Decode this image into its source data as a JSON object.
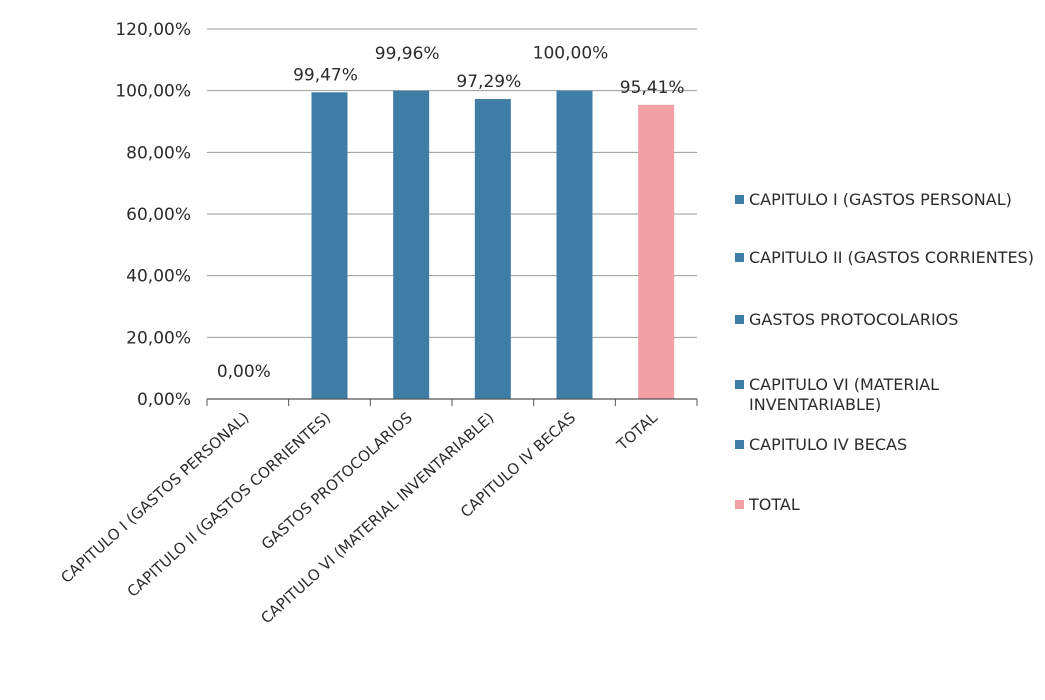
{
  "chart_data": {
    "type": "bar",
    "categories": [
      "CAPITULO I (GASTOS PERSONAL)",
      "CAPITULO II (GASTOS CORRIENTES)",
      "GASTOS PROTOCOLARIOS",
      "CAPITULO VI (MATERIAL INVENTARIABLE)",
      "CAPITULO IV BECAS",
      "TOTAL"
    ],
    "values": [
      0,
      99.47,
      99.96,
      97.29,
      100,
      95.41
    ],
    "data_labels": [
      "0,00%",
      "99,47%",
      "99,96%",
      "97,29%",
      "100,00%",
      "95,41%"
    ],
    "colors": [
      "#3e7ea6",
      "#3e7ea6",
      "#3e7ea6",
      "#3e7ea6",
      "#3e7ea6",
      "#f2a0a3"
    ],
    "ylim": [
      0,
      120
    ],
    "yticks": [
      0,
      20,
      40,
      60,
      80,
      100,
      120
    ],
    "ytick_labels": [
      "0,00%",
      "20,00%",
      "40,00%",
      "60,00%",
      "80,00%",
      "100,00%",
      "120,00%"
    ],
    "grid": true,
    "legend_position": "right",
    "legend": [
      {
        "label": "CAPITULO I (GASTOS PERSONAL)",
        "color": "#3e7ea6"
      },
      {
        "label": "CAPITULO II (GASTOS CORRIENTES)",
        "color": "#3e7ea6"
      },
      {
        "label": "GASTOS PROTOCOLARIOS",
        "color": "#3e7ea6"
      },
      {
        "label": "CAPITULO VI (MATERIAL INVENTARIABLE)",
        "color": "#3e7ea6"
      },
      {
        "label": "CAPITULO IV BECAS",
        "color": "#3e7ea6"
      },
      {
        "label": "TOTAL",
        "color": "#f2a0a3"
      }
    ]
  }
}
